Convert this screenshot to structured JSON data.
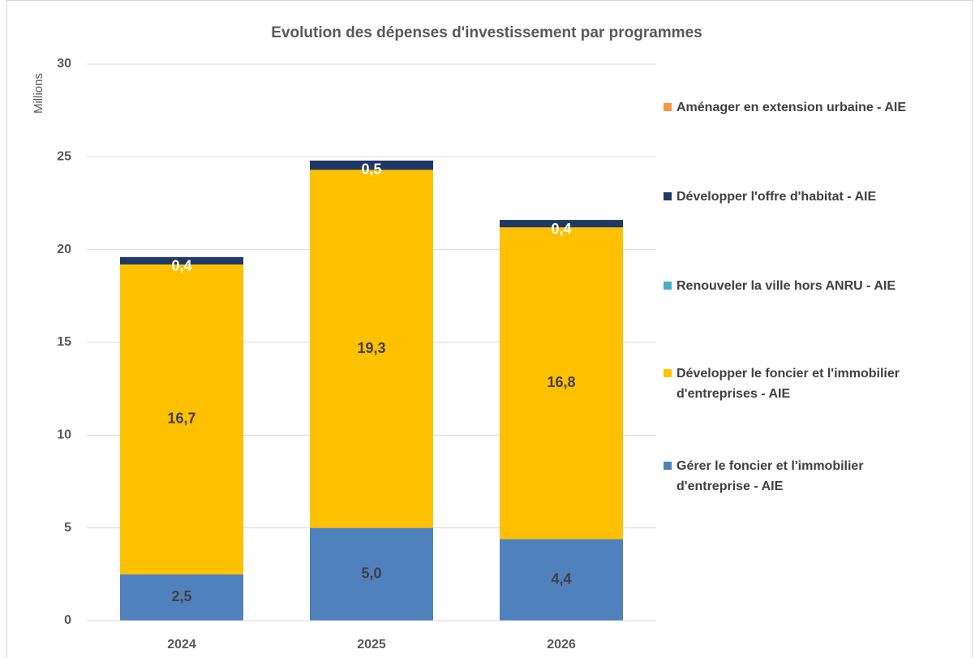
{
  "chart_data": {
    "type": "stacked_bar",
    "title": "Evolution des dépenses d'investissement par programmes",
    "y_label": "Millions",
    "categories": [
      "2024",
      "2025",
      "2026"
    ],
    "series": [
      {
        "name": "Gérer le foncier et l'immobilier d'entreprise - AIE",
        "color": "#4f81bd",
        "values": [
          2.5,
          5.0,
          4.4
        ],
        "value_labels": [
          "2,5",
          "5,0",
          "4,4"
        ]
      },
      {
        "name": "Développer le foncier et l'immobilier d'entreprises - AIE",
        "color": "#ffc000",
        "values": [
          16.7,
          19.3,
          16.8
        ],
        "value_labels": [
          "16,7",
          "19,3",
          "16,8"
        ]
      },
      {
        "name": "Renouveler la ville hors ANRU - AIE",
        "color": "#4bacc6",
        "values": [
          0,
          0,
          0
        ]
      },
      {
        "name": "Développer l'offre d'habitat - AIE",
        "color": "#1f3864",
        "values": [
          0.4,
          0.5,
          0.4
        ],
        "value_labels": [
          "0,4",
          "0,5",
          "0,4"
        ]
      },
      {
        "name": "Aménager en extension urbaine - AIE",
        "color": "#f79646",
        "values": [
          0,
          0,
          0
        ]
      }
    ],
    "ylim": [
      0,
      30
    ],
    "yticks": [
      0,
      5,
      10,
      15,
      20,
      25,
      30
    ],
    "grid": true,
    "legend": "right"
  }
}
